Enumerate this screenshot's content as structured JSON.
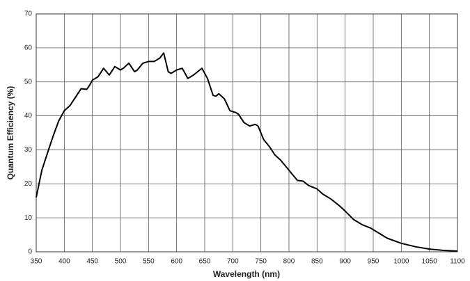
{
  "chart_data": {
    "type": "line",
    "xlabel": "Wavelength (nm)",
    "ylabel": "Quantum Efficiency (%)",
    "color": "#000000",
    "x": [
      350,
      360,
      370,
      380,
      390,
      400,
      410,
      420,
      430,
      440,
      445,
      450,
      460,
      470,
      480,
      490,
      500,
      505,
      515,
      525,
      530,
      540,
      550,
      560,
      570,
      577,
      585,
      590,
      600,
      610,
      620,
      630,
      645,
      655,
      665,
      670,
      675,
      685,
      695,
      705,
      710,
      720,
      730,
      740,
      745,
      755,
      765,
      775,
      785,
      795,
      805,
      815,
      825,
      835,
      850,
      860,
      875,
      890,
      900,
      915,
      930,
      945,
      960,
      975,
      1000,
      1025,
      1050,
      1075,
      1100
    ],
    "values": [
      16,
      24,
      29,
      34,
      38.5,
      41.5,
      43,
      45.5,
      48,
      47.8,
      49,
      50.5,
      51.5,
      54,
      52,
      54.5,
      53.5,
      54,
      55.5,
      53,
      53.5,
      55.5,
      56,
      56,
      57,
      58.5,
      53,
      52.5,
      53.5,
      54,
      51,
      52,
      54,
      51,
      46,
      45.8,
      46.5,
      45,
      41.5,
      41,
      40.5,
      38,
      37,
      37.5,
      37,
      33,
      31,
      28.5,
      27,
      25,
      23,
      21,
      20.8,
      19.5,
      18.5,
      17,
      15.5,
      13.5,
      12,
      9.5,
      8,
      7,
      5.5,
      4,
      2.5,
      1.5,
      0.8,
      0.4,
      0.2
    ],
    "xlim": [
      350,
      1100
    ],
    "xticks": [
      350,
      400,
      450,
      500,
      550,
      600,
      650,
      700,
      750,
      800,
      850,
      900,
      950,
      1000,
      1050,
      1100
    ],
    "ylim": [
      0,
      70
    ],
    "yticks": [
      0,
      10,
      20,
      30,
      40,
      50,
      60,
      70
    ],
    "grid": true
  }
}
